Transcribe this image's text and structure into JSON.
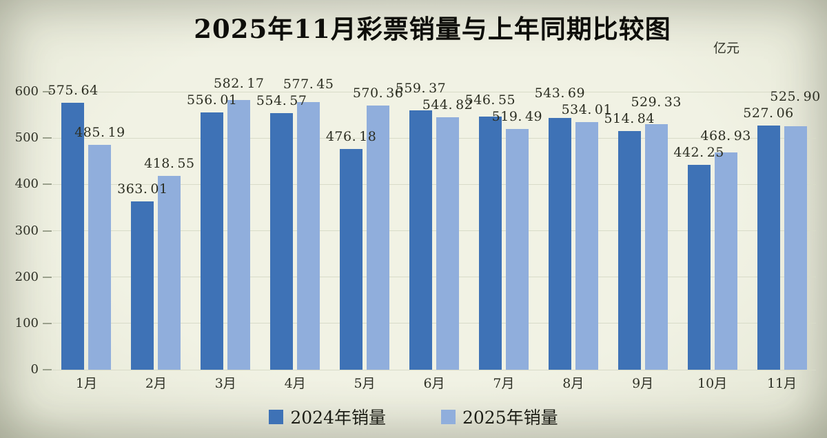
{
  "page": {
    "title": "2025年11月彩票销量与上年同期比较图",
    "unit_label": "亿元"
  },
  "colors": {
    "series_2024": "#3e72b6",
    "series_2025": "#90aedc",
    "background": "#eeefe0",
    "gridline": "#d8dbc8",
    "tick_stub": "#9aa08c",
    "label_text": "#2c2e22"
  },
  "chart_data": {
    "type": "bar",
    "title": "2025年11月彩票销量与上年同期比较图",
    "ylabel": "亿元",
    "categories": [
      "1月",
      "2月",
      "3月",
      "4月",
      "5月",
      "6月",
      "7月",
      "8月",
      "9月",
      "10月",
      "11月"
    ],
    "series": [
      {
        "name": "2024年销量",
        "color": "#3e72b6",
        "values": [
          575.64,
          363.01,
          556.01,
          554.57,
          476.18,
          559.37,
          546.55,
          543.69,
          514.84,
          442.25,
          527.06
        ]
      },
      {
        "name": "2025年销量",
        "color": "#90aedc",
        "values": [
          485.19,
          418.55,
          582.17,
          577.45,
          570.36,
          544.82,
          519.49,
          534.01,
          529.33,
          468.93,
          525.9
        ]
      }
    ],
    "ylim": [
      0,
      600
    ],
    "yticks": [
      0,
      100,
      200,
      300,
      400,
      500,
      600
    ],
    "grid": true,
    "data_labels": true,
    "legend_position": "bottom"
  }
}
